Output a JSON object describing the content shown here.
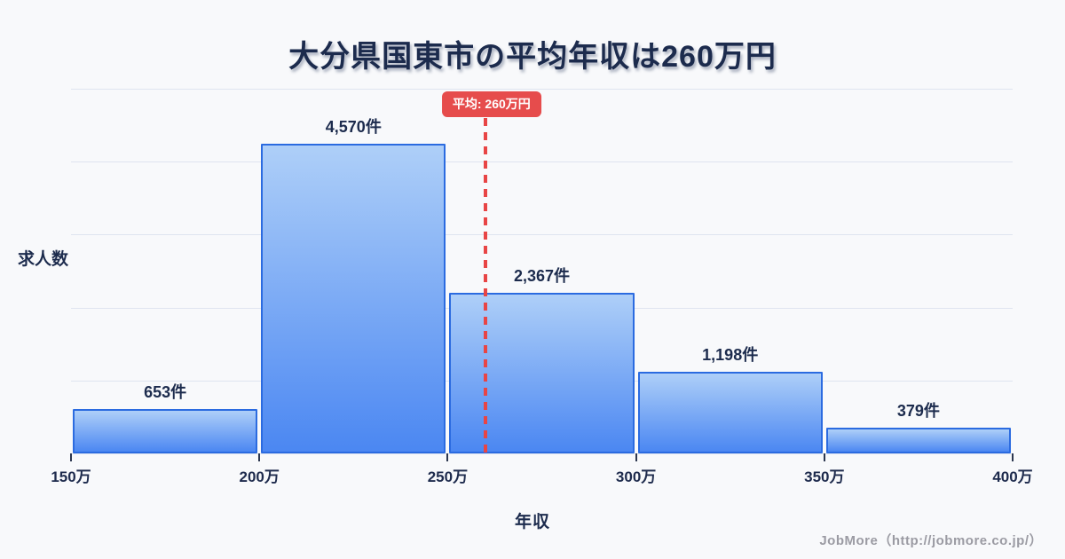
{
  "title": "大分県国東市の平均年収は260万円",
  "y_axis_title": "求人数",
  "x_axis_title": "年収",
  "footer": "JobMore（http://jobmore.co.jp/）",
  "average_badge": "平均: 260万円",
  "chart_data": {
    "type": "bar",
    "title": "大分県国東市の平均年収は260万円",
    "xlabel": "年収",
    "ylabel": "求人数",
    "categories": [
      "150万-200万",
      "200万-250万",
      "250万-300万",
      "300万-350万",
      "350万-400万"
    ],
    "values": [
      653,
      4570,
      2367,
      1198,
      379
    ],
    "bar_labels": [
      "653件",
      "4,570件",
      "2,367件",
      "1,198件",
      "379件"
    ],
    "x_tick_labels": [
      "150万",
      "200万",
      "250万",
      "300万",
      "350万",
      "400万"
    ],
    "x_range_man_yen": [
      150,
      400
    ],
    "ylim": [
      0,
      5380
    ],
    "grid": true,
    "gridline_count": 6,
    "average_line": {
      "value_man_yen": 260,
      "label": "平均: 260万円",
      "color": "#e84545",
      "style": "dashed"
    },
    "legend": "none",
    "colors": {
      "background": "#f8f9fb",
      "bar_gradient_top": "#aecff8",
      "bar_gradient_bottom": "#4b87f2",
      "bar_border": "#2b6be0",
      "gridline": "#dfe4f0",
      "text": "#1c2b4d",
      "badge_background": "#e64c4c",
      "badge_text": "#ffffff",
      "footer_text": "#9b9ba3"
    }
  }
}
